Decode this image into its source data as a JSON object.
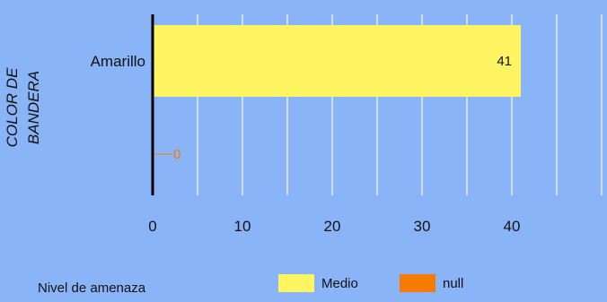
{
  "chart_data": {
    "type": "bar",
    "orientation": "horizontal",
    "ylabel": "COLOR DE BANDERA",
    "categories": [
      "Amarillo",
      ""
    ],
    "series": [
      {
        "name": "Medio",
        "values": [
          41,
          0
        ],
        "color": "#fff462"
      },
      {
        "name": "null",
        "values": [
          0,
          0
        ],
        "color": "#f57c00"
      }
    ],
    "data_labels": [
      "41",
      "0"
    ],
    "xlim": [
      0,
      50
    ],
    "xticks": [
      0,
      10,
      20,
      30,
      40
    ],
    "grid": true,
    "legend_position": "bottom",
    "legend_title": "Nivel de amenaza",
    "colors": {
      "background": "#8ab4f8",
      "grid": "#d0def7",
      "axis": "#000000"
    }
  }
}
